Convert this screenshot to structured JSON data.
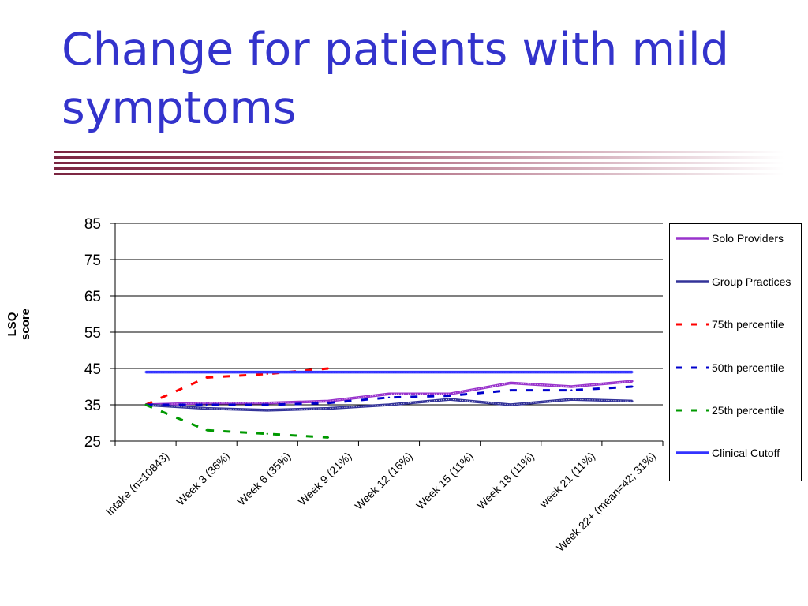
{
  "slide": {
    "title": "Change for patients with mild symptoms"
  },
  "chart_data": {
    "type": "line",
    "title": "",
    "xlabel": "",
    "ylabel": "LSQ score",
    "ylim": [
      25,
      85
    ],
    "yticks": [
      25,
      35,
      45,
      55,
      65,
      75,
      85
    ],
    "grid": true,
    "legend_position": "right",
    "categories": [
      "Intake (n=10843)",
      "Week 3 (36%)",
      "Week 6 (35%)",
      "Week 9 (21%)",
      "Week 12 (16%)",
      "Week 15 (11%)",
      "Week 18 (11%)",
      "week 21 (11%)",
      "Week 22+ (mean=42; 31%)"
    ],
    "series": [
      {
        "name": "Solo Providers",
        "color": "#9933cc",
        "style": "solid-marked",
        "values": [
          35,
          35.5,
          35.5,
          36,
          38,
          38,
          41,
          40,
          41.5
        ]
      },
      {
        "name": "Group Practices",
        "color": "#333399",
        "style": "solid-marked",
        "values": [
          35,
          34,
          33.5,
          34,
          35,
          36.5,
          35,
          36.5,
          36
        ]
      },
      {
        "name": "75th percentile",
        "color": "#ff0000",
        "style": "dashed",
        "values": [
          35,
          42.5,
          43.5,
          45,
          null,
          null,
          null,
          null,
          null
        ]
      },
      {
        "name": "50th percentile",
        "color": "#0000cc",
        "style": "dashed",
        "values": [
          35,
          35,
          35,
          35.5,
          37,
          37.5,
          39,
          39,
          40
        ]
      },
      {
        "name": "25th percentile",
        "color": "#009900",
        "style": "dashed",
        "values": [
          35,
          28,
          27,
          26,
          null,
          null,
          null,
          null,
          null
        ]
      },
      {
        "name": "Clinical Cutoff",
        "color": "#3333ff",
        "style": "solid-marked",
        "values": [
          44,
          44,
          44,
          44,
          44,
          44,
          44,
          44,
          44
        ]
      }
    ]
  }
}
